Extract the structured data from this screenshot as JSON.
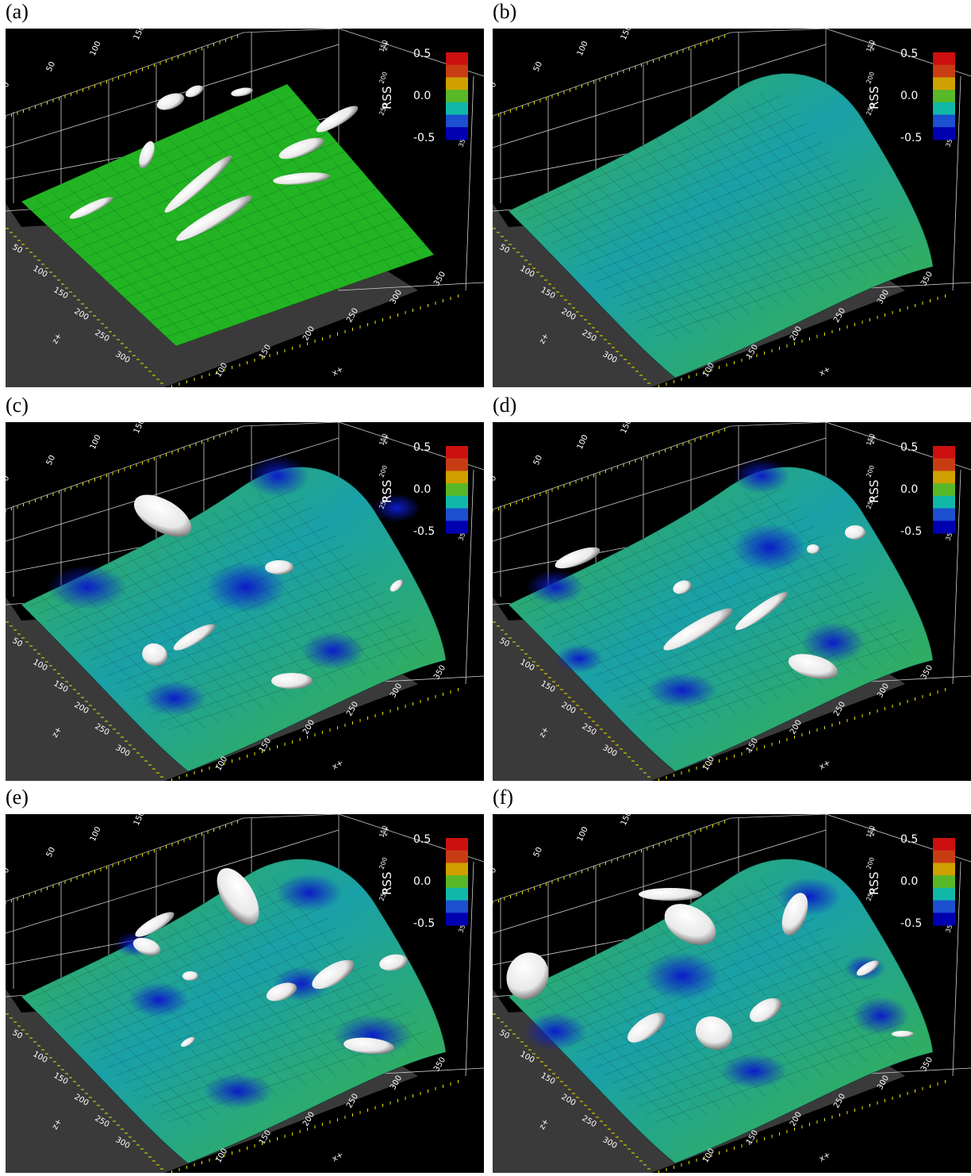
{
  "panels": [
    {
      "label": "(a)",
      "state": "flat"
    },
    {
      "label": "(b)",
      "state": "wavy"
    },
    {
      "label": "(c)",
      "state": "wavy"
    },
    {
      "label": "(d)",
      "state": "wavy"
    },
    {
      "label": "(e)",
      "state": "wavy"
    },
    {
      "label": "(f)",
      "state": "wavy"
    }
  ],
  "colorbar": {
    "title": "RSS",
    "ticks": [
      "0.5",
      "0.0",
      "-0.5"
    ],
    "colors": [
      "#cc1010",
      "#c83c14",
      "#d0a000",
      "#58b828",
      "#10b8a8",
      "#1c50d0",
      "#0000b0"
    ]
  },
  "axes": {
    "x_title": "x+",
    "z_title": "z+",
    "y_title": "z+",
    "x_ticks": [
      "100",
      "150",
      "200",
      "250",
      "300",
      "350"
    ],
    "z_ticks": [
      "50",
      "100",
      "150",
      "200",
      "250",
      "300"
    ],
    "top_ticks": [
      "0",
      "50",
      "100",
      "150"
    ],
    "right_ticks": [
      "150",
      "200",
      "250",
      "350"
    ]
  },
  "colors": {
    "background": "#000000",
    "floor": "#3a3a3a",
    "grid": "#d0d0d0",
    "ticks": "#e8e000",
    "surface_flat": "#22b422",
    "surface_green": "#3cb43c",
    "surface_teal": "#1aa0a8",
    "surface_blue": "#0c1cc8",
    "blob": "#e8e8e8"
  }
}
